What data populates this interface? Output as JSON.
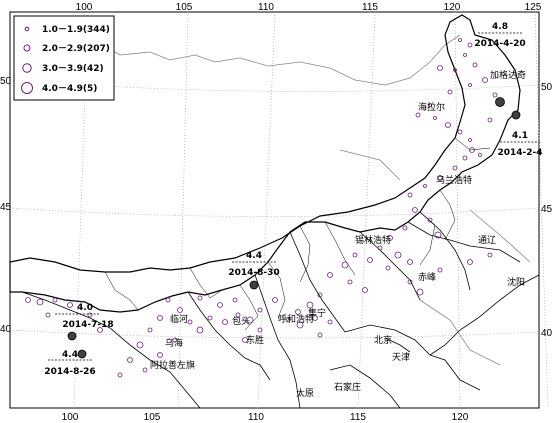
{
  "axes": {
    "lon_ticks_top": [
      "100",
      "105",
      "110",
      "115",
      "120",
      "125"
    ],
    "lon_ticks_bottom": [
      "100",
      "105",
      "110",
      "115",
      "120"
    ],
    "lat_ticks_left": [
      "50",
      "45",
      "40"
    ],
    "lat_ticks_right": [
      "50",
      "45",
      "40"
    ]
  },
  "legend": {
    "items": [
      {
        "label": "1.0－1.9(344)",
        "magnitude_class": "1.0-1.9",
        "count": 344
      },
      {
        "label": "2.0－2.9(207)",
        "magnitude_class": "2.0-2.9",
        "count": 207
      },
      {
        "label": "3.0－3.9(42)",
        "magnitude_class": "3.0-3.9",
        "count": 42
      },
      {
        "label": "4.0－4.9(5)",
        "magnitude_class": "4.0-4.9",
        "count": 5
      }
    ]
  },
  "colors": {
    "event_stroke": "#6b1f7a",
    "major_event_fill": "#404040",
    "boundary": "#000000",
    "graticule": "#aaaaaa",
    "outer_border": "#888888"
  },
  "cities": [
    "加格达奇",
    "海拉尔",
    "乌兰浩特",
    "锡林浩特",
    "通辽",
    "沈阳",
    "赤峰",
    "呼和浩特",
    "集宁",
    "包头",
    "临河",
    "东胜",
    "乌海",
    "阿拉善左旗",
    "北京",
    "天津",
    "石家庄",
    "太原"
  ],
  "major_events": [
    {
      "magnitude": "4.8",
      "date": "2014-4-20"
    },
    {
      "magnitude": "4.1",
      "date": "2014-2-4"
    },
    {
      "magnitude": "4.4",
      "date": "2014-8-30"
    },
    {
      "magnitude": "4.0",
      "date": "2014-7-18"
    },
    {
      "magnitude": "4.4",
      "date": "2014-8-26"
    }
  ]
}
